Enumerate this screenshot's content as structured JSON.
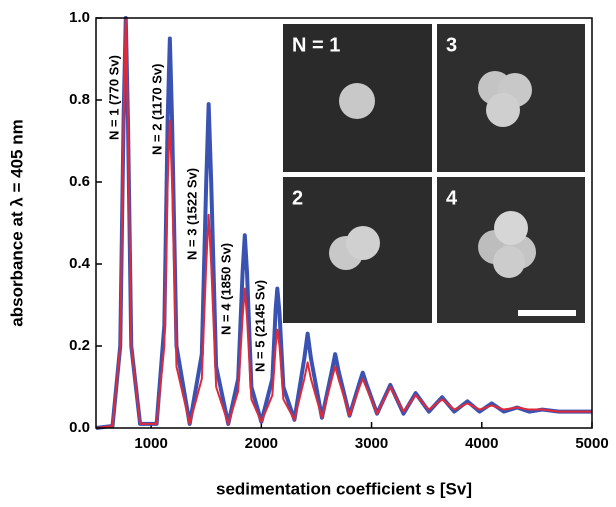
{
  "chart_data": {
    "type": "line",
    "x_label": "sedimentation coefficient s [Sv]",
    "y_label": "absorbance at λ = 405 nm",
    "xlim": [
      500,
      5000
    ],
    "xticks": [
      1000,
      2000,
      3000,
      4000,
      5000
    ],
    "ylim": [
      0,
      1
    ],
    "yticks": [
      {
        "value": 0,
        "label": "0.0"
      },
      0.2,
      0.4,
      0.6,
      0.8,
      {
        "value": 1,
        "label": "1.0"
      }
    ],
    "x": [
      500,
      650,
      720,
      750,
      770,
      790,
      820,
      900,
      1050,
      1120,
      1150,
      1170,
      1190,
      1230,
      1350,
      1460,
      1500,
      1522,
      1545,
      1590,
      1700,
      1790,
      1830,
      1850,
      1870,
      1910,
      2000,
      2100,
      2130,
      2145,
      2165,
      2200,
      2300,
      2390,
      2420,
      2450,
      2550,
      2640,
      2670,
      2700,
      2800,
      2890,
      2920,
      2950,
      3050,
      3170,
      3290,
      3400,
      3520,
      3640,
      3750,
      3870,
      3980,
      4090,
      4200,
      4320,
      4430,
      4550,
      4700,
      4800,
      5000
    ],
    "series": [
      {
        "color": "#3a53b3",
        "values": [
          0,
          0.005,
          0.2,
          0.75,
          1.0,
          0.75,
          0.2,
          0.01,
          0.01,
          0.25,
          0.75,
          0.95,
          0.75,
          0.2,
          0.01,
          0.18,
          0.6,
          0.79,
          0.6,
          0.15,
          0.01,
          0.12,
          0.38,
          0.47,
          0.38,
          0.1,
          0.015,
          0.12,
          0.29,
          0.34,
          0.28,
          0.1,
          0.02,
          0.17,
          0.23,
          0.17,
          0.025,
          0.14,
          0.18,
          0.14,
          0.03,
          0.11,
          0.135,
          0.11,
          0.035,
          0.105,
          0.035,
          0.085,
          0.04,
          0.075,
          0.04,
          0.065,
          0.04,
          0.06,
          0.04,
          0.05,
          0.04,
          0.045,
          0.04,
          0.04,
          0.04
        ]
      },
      {
        "color": "#e02a3a",
        "values": [
          0,
          0.005,
          0.2,
          0.75,
          1.0,
          0.75,
          0.2,
          0.01,
          0.01,
          0.2,
          0.6,
          0.75,
          0.6,
          0.15,
          0.01,
          0.12,
          0.4,
          0.52,
          0.4,
          0.1,
          0.01,
          0.09,
          0.27,
          0.34,
          0.27,
          0.07,
          0.015,
          0.08,
          0.2,
          0.24,
          0.2,
          0.07,
          0.02,
          0.12,
          0.16,
          0.12,
          0.025,
          0.12,
          0.15,
          0.12,
          0.03,
          0.1,
          0.12,
          0.1,
          0.035,
          0.1,
          0.04,
          0.08,
          0.045,
          0.07,
          0.045,
          0.06,
          0.045,
          0.055,
          0.045,
          0.05,
          0.045,
          0.045,
          0.04,
          0.04,
          0.04
        ]
      }
    ],
    "annotations": [
      "N = 1 (770 Sv)",
      "N = 2 (1170 Sv)",
      "N = 3 (1522 Sv)",
      "N = 4 (1850 Sv)",
      "N = 5 (2145 Sv)"
    ],
    "inset_labels": [
      "N = 1",
      "3",
      "2",
      "4"
    ]
  }
}
